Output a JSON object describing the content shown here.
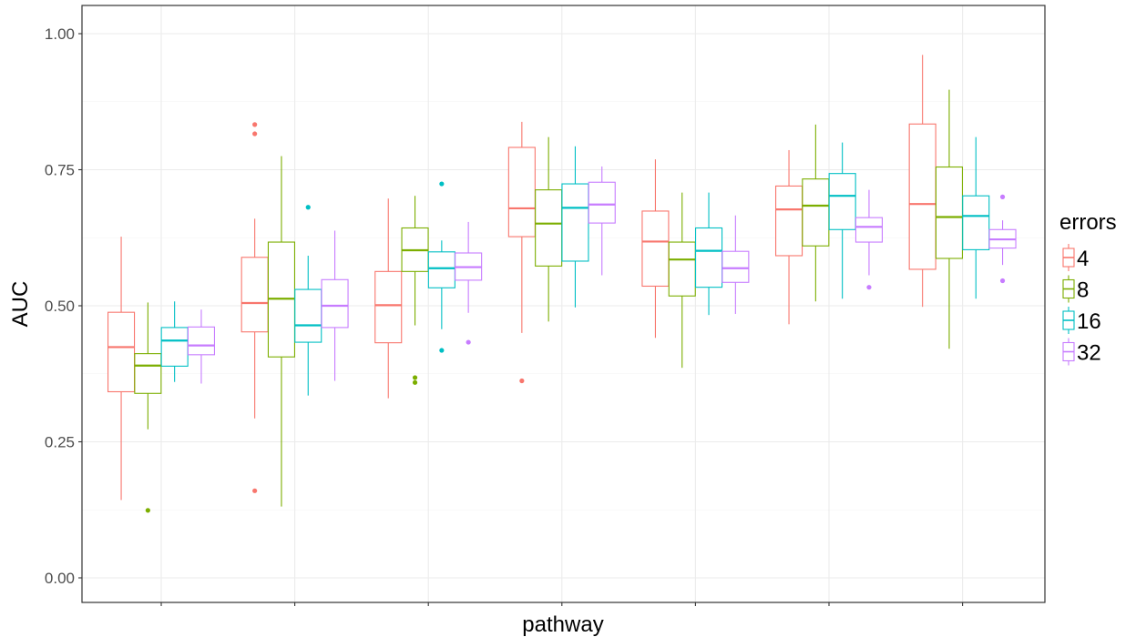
{
  "chart_data": {
    "type": "boxplot",
    "xlabel": "pathway",
    "ylabel": "AUC",
    "ylim": [
      -0.06,
      1.05
    ],
    "y_ticks": [
      0.0,
      0.25,
      0.5,
      0.75,
      1.0
    ],
    "y_tick_labels": [
      "0.00",
      "0.25",
      "0.50",
      "0.75",
      "1.00"
    ],
    "x_tick_labels": [
      "",
      "",
      "",
      "",
      "",
      "",
      ""
    ],
    "grid": true,
    "legend_position": "right",
    "legend": {
      "title": "errors",
      "entries": [
        "4",
        "8",
        "16",
        "32"
      ]
    },
    "colors": [
      "#F8766D",
      "#7CAE00",
      "#00BFC4",
      "#C77CFF"
    ],
    "groups": [
      {
        "boxes": [
          {
            "whisker_low": 0.143,
            "q1": 0.342,
            "median": 0.424,
            "q3": 0.488,
            "whisker_high": 0.627,
            "outliers": []
          },
          {
            "whisker_low": 0.273,
            "q1": 0.339,
            "median": 0.39,
            "q3": 0.412,
            "whisker_high": 0.506,
            "outliers": [
              0.124
            ]
          },
          {
            "whisker_low": 0.36,
            "q1": 0.389,
            "median": 0.436,
            "q3": 0.46,
            "whisker_high": 0.508,
            "outliers": []
          },
          {
            "whisker_low": 0.357,
            "q1": 0.41,
            "median": 0.427,
            "q3": 0.461,
            "whisker_high": 0.493,
            "outliers": []
          }
        ]
      },
      {
        "boxes": [
          {
            "whisker_low": 0.293,
            "q1": 0.452,
            "median": 0.505,
            "q3": 0.589,
            "whisker_high": 0.66,
            "outliers": [
              0.16,
              0.816,
              0.833
            ]
          },
          {
            "whisker_low": 0.131,
            "q1": 0.406,
            "median": 0.513,
            "q3": 0.617,
            "whisker_high": 0.775,
            "outliers": []
          },
          {
            "whisker_low": 0.335,
            "q1": 0.433,
            "median": 0.464,
            "q3": 0.53,
            "whisker_high": 0.592,
            "outliers": [
              0.681
            ]
          },
          {
            "whisker_low": 0.362,
            "q1": 0.46,
            "median": 0.5,
            "q3": 0.548,
            "whisker_high": 0.638,
            "outliers": []
          }
        ]
      },
      {
        "boxes": [
          {
            "whisker_low": 0.33,
            "q1": 0.432,
            "median": 0.501,
            "q3": 0.563,
            "whisker_high": 0.697,
            "outliers": []
          },
          {
            "whisker_low": 0.464,
            "q1": 0.563,
            "median": 0.602,
            "q3": 0.643,
            "whisker_high": 0.702,
            "outliers": [
              0.359,
              0.368
            ]
          },
          {
            "whisker_low": 0.457,
            "q1": 0.533,
            "median": 0.569,
            "q3": 0.599,
            "whisker_high": 0.62,
            "outliers": [
              0.418,
              0.724
            ]
          },
          {
            "whisker_low": 0.487,
            "q1": 0.547,
            "median": 0.571,
            "q3": 0.597,
            "whisker_high": 0.654,
            "outliers": [
              0.433
            ]
          }
        ]
      },
      {
        "boxes": [
          {
            "whisker_low": 0.45,
            "q1": 0.627,
            "median": 0.679,
            "q3": 0.791,
            "whisker_high": 0.838,
            "outliers": [
              0.362
            ]
          },
          {
            "whisker_low": 0.471,
            "q1": 0.573,
            "median": 0.651,
            "q3": 0.713,
            "whisker_high": 0.81,
            "outliers": []
          },
          {
            "whisker_low": 0.497,
            "q1": 0.582,
            "median": 0.68,
            "q3": 0.724,
            "whisker_high": 0.793,
            "outliers": []
          },
          {
            "whisker_low": 0.556,
            "q1": 0.652,
            "median": 0.686,
            "q3": 0.727,
            "whisker_high": 0.756,
            "outliers": []
          }
        ]
      },
      {
        "boxes": [
          {
            "whisker_low": 0.441,
            "q1": 0.536,
            "median": 0.618,
            "q3": 0.674,
            "whisker_high": 0.769,
            "outliers": []
          },
          {
            "whisker_low": 0.386,
            "q1": 0.518,
            "median": 0.585,
            "q3": 0.617,
            "whisker_high": 0.708,
            "outliers": []
          },
          {
            "whisker_low": 0.483,
            "q1": 0.534,
            "median": 0.601,
            "q3": 0.643,
            "whisker_high": 0.708,
            "outliers": []
          },
          {
            "whisker_low": 0.485,
            "q1": 0.543,
            "median": 0.569,
            "q3": 0.6,
            "whisker_high": 0.666,
            "outliers": []
          }
        ]
      },
      {
        "boxes": [
          {
            "whisker_low": 0.466,
            "q1": 0.592,
            "median": 0.677,
            "q3": 0.72,
            "whisker_high": 0.786,
            "outliers": []
          },
          {
            "whisker_low": 0.508,
            "q1": 0.61,
            "median": 0.684,
            "q3": 0.733,
            "whisker_high": 0.833,
            "outliers": []
          },
          {
            "whisker_low": 0.513,
            "q1": 0.64,
            "median": 0.702,
            "q3": 0.743,
            "whisker_high": 0.8,
            "outliers": []
          },
          {
            "whisker_low": 0.556,
            "q1": 0.617,
            "median": 0.645,
            "q3": 0.662,
            "whisker_high": 0.713,
            "outliers": [
              0.534
            ]
          }
        ]
      },
      {
        "boxes": [
          {
            "whisker_low": 0.498,
            "q1": 0.567,
            "median": 0.687,
            "q3": 0.834,
            "whisker_high": 0.961,
            "outliers": []
          },
          {
            "whisker_low": 0.421,
            "q1": 0.587,
            "median": 0.663,
            "q3": 0.755,
            "whisker_high": 0.897,
            "outliers": []
          },
          {
            "whisker_low": 0.513,
            "q1": 0.603,
            "median": 0.665,
            "q3": 0.702,
            "whisker_high": 0.81,
            "outliers": []
          },
          {
            "whisker_low": 0.575,
            "q1": 0.606,
            "median": 0.622,
            "q3": 0.64,
            "whisker_high": 0.657,
            "outliers": [
              0.546,
              0.7
            ]
          }
        ]
      }
    ]
  }
}
